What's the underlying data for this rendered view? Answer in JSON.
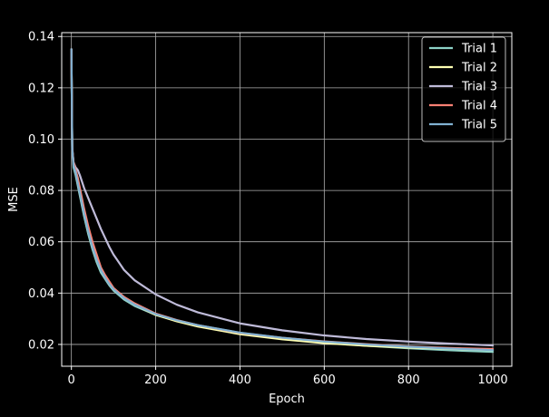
{
  "chart_data": {
    "type": "line",
    "title": "",
    "xlabel": "Epoch",
    "ylabel": "MSE",
    "xlim": [
      -23,
      1045
    ],
    "ylim": [
      0.0115,
      0.1415
    ],
    "xticks": [
      0,
      200,
      400,
      600,
      800,
      1000
    ],
    "yticks": [
      0.02,
      0.04,
      0.06,
      0.08,
      0.1,
      0.12,
      0.14
    ],
    "xtick_labels": [
      "0",
      "200",
      "400",
      "600",
      "800",
      "1000"
    ],
    "ytick_labels": [
      "0.02",
      "0.04",
      "0.06",
      "0.08",
      "0.10",
      "0.12",
      "0.14"
    ],
    "grid": true,
    "legend_position": "upper right",
    "background": "#000000",
    "foreground": "#ffffff",
    "grid_color": "#b0b0b0",
    "x": [
      0,
      2,
      5,
      10,
      15,
      20,
      30,
      40,
      50,
      60,
      70,
      80,
      90,
      100,
      125,
      150,
      200,
      250,
      300,
      400,
      500,
      600,
      700,
      800,
      900,
      1000
    ],
    "series": [
      {
        "name": "Trial 1",
        "color": "#8dd3c7",
        "values": [
          0.135,
          0.096,
          0.089,
          0.086,
          0.082,
          0.078,
          0.07,
          0.063,
          0.057,
          0.052,
          0.048,
          0.0455,
          0.043,
          0.041,
          0.0375,
          0.035,
          0.0315,
          0.0292,
          0.0272,
          0.0242,
          0.0222,
          0.0207,
          0.0195,
          0.0185,
          0.0177,
          0.0171
        ]
      },
      {
        "name": "Trial 2",
        "color": "#feffb3",
        "values": [
          0.135,
          0.096,
          0.091,
          0.087,
          0.083,
          0.079,
          0.071,
          0.064,
          0.058,
          0.053,
          0.049,
          0.046,
          0.0435,
          0.0415,
          0.038,
          0.0355,
          0.0315,
          0.029,
          0.027,
          0.024,
          0.022,
          0.0205,
          0.0195,
          0.0188,
          0.0183,
          0.0178
        ]
      },
      {
        "name": "Trial 3",
        "color": "#bfbbd9",
        "values": [
          0.135,
          0.097,
          0.091,
          0.089,
          0.088,
          0.086,
          0.081,
          0.077,
          0.073,
          0.069,
          0.065,
          0.0615,
          0.058,
          0.055,
          0.049,
          0.045,
          0.0395,
          0.0355,
          0.0325,
          0.0282,
          0.0255,
          0.0235,
          0.0221,
          0.0211,
          0.0203,
          0.0196
        ]
      },
      {
        "name": "Trial 4",
        "color": "#fa8174",
        "values": [
          0.135,
          0.096,
          0.091,
          0.088,
          0.085,
          0.081,
          0.073,
          0.066,
          0.06,
          0.055,
          0.05,
          0.047,
          0.0445,
          0.042,
          0.0385,
          0.036,
          0.032,
          0.0295,
          0.0275,
          0.0245,
          0.0226,
          0.0212,
          0.0201,
          0.0192,
          0.0186,
          0.0182
        ]
      },
      {
        "name": "Trial 5",
        "color": "#81b1d2",
        "values": [
          0.135,
          0.096,
          0.09,
          0.087,
          0.083,
          0.079,
          0.071,
          0.064,
          0.058,
          0.053,
          0.049,
          0.046,
          0.0435,
          0.0415,
          0.038,
          0.0355,
          0.0318,
          0.0294,
          0.0275,
          0.0246,
          0.0226,
          0.0211,
          0.02,
          0.0191,
          0.0184,
          0.0178
        ]
      }
    ]
  }
}
